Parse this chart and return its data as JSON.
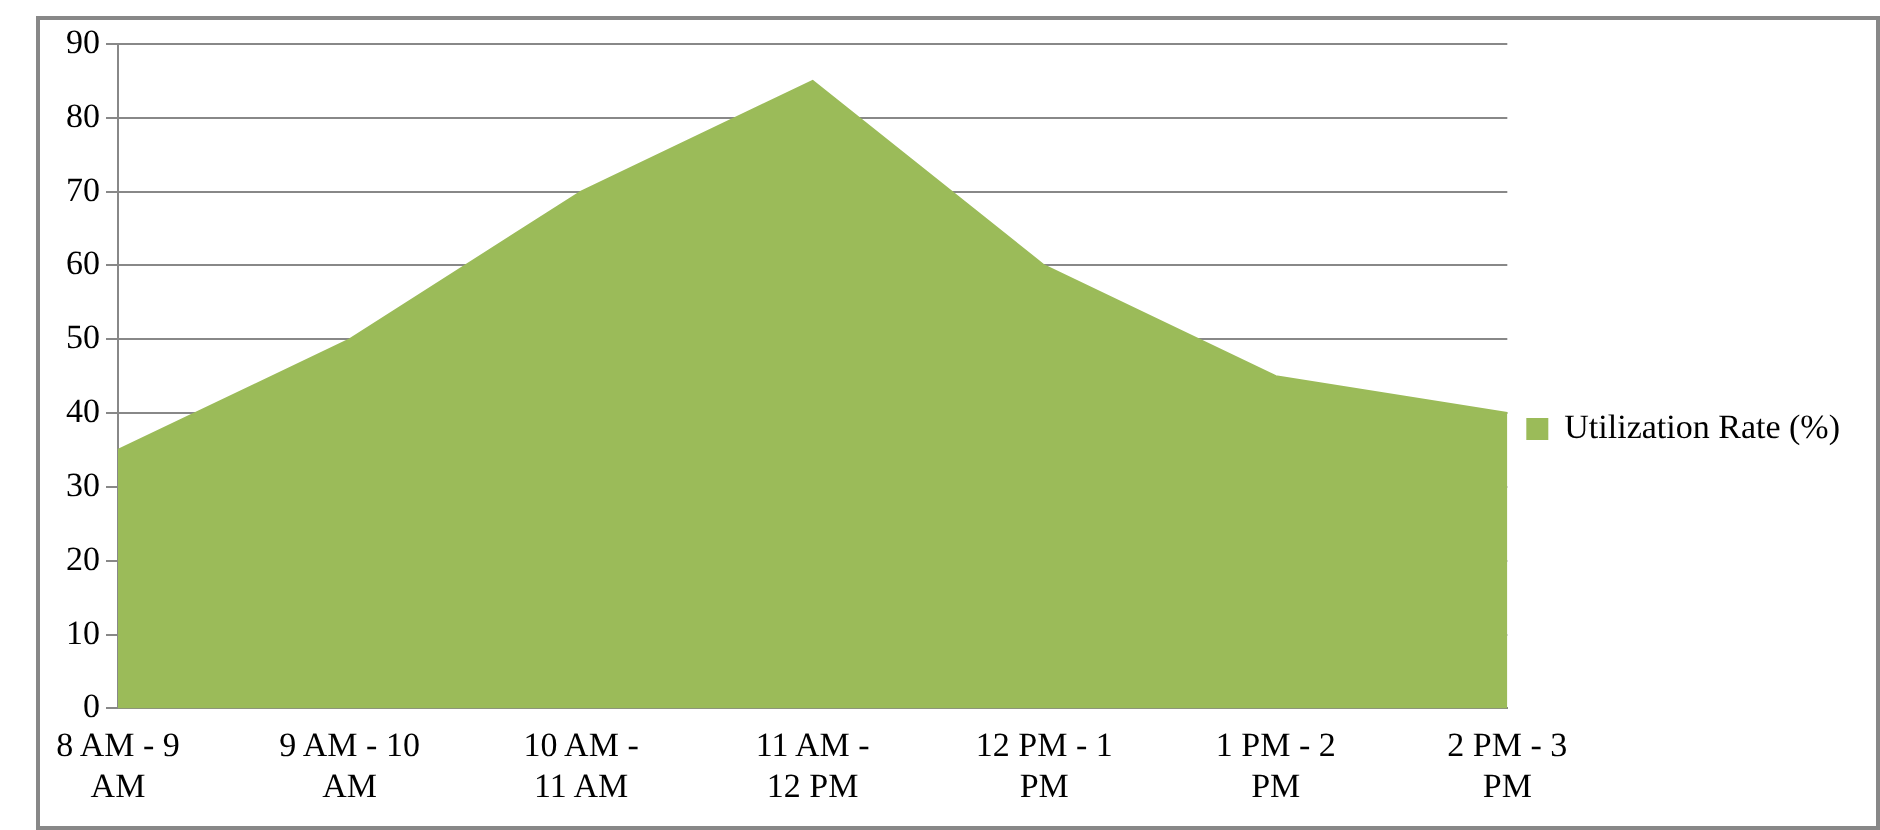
{
  "chart_data": {
    "type": "area",
    "categories": [
      "8 AM - 9 AM",
      "9 AM - 10 AM",
      "10 AM - 11 AM",
      "11 AM - 12 PM",
      "12 PM - 1 PM",
      "1 PM - 2 PM",
      "2 PM - 3 PM"
    ],
    "series": [
      {
        "name": "Utilization Rate (%)",
        "color": "#9bbb59",
        "values": [
          35,
          50,
          70,
          85,
          60,
          45,
          40
        ]
      }
    ],
    "ylim": [
      0,
      90
    ],
    "yticks": [
      0,
      10,
      20,
      30,
      40,
      50,
      60,
      70,
      80,
      90
    ],
    "grid": "y",
    "legend": "right"
  }
}
